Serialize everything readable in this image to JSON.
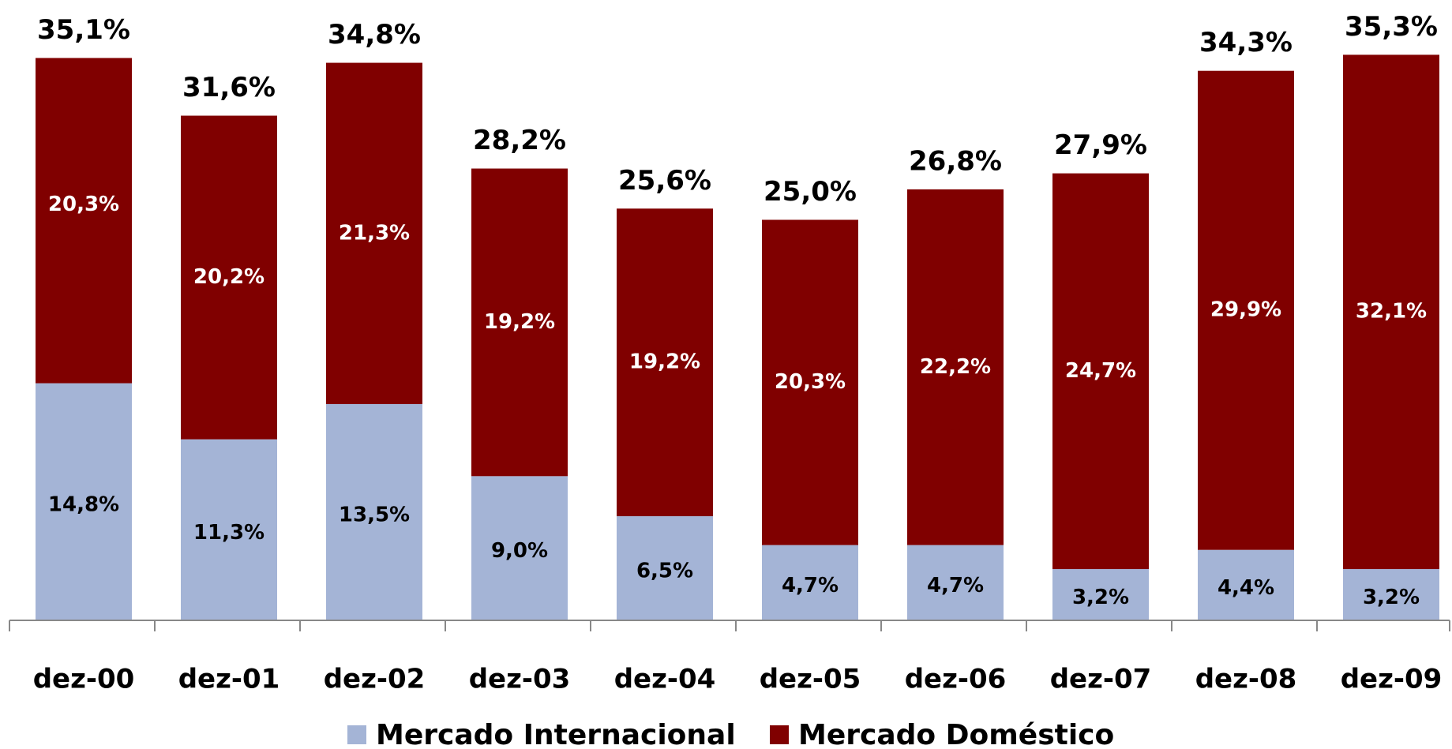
{
  "chart_data": {
    "type": "stacked_bar",
    "categories": [
      "dez-00",
      "dez-01",
      "dez-02",
      "dez-03",
      "dez-04",
      "dez-05",
      "dez-06",
      "dez-07",
      "dez-08",
      "dez-09"
    ],
    "series": [
      {
        "name": "Mercado Internacional",
        "color": "#a4b4d6",
        "values": [
          14.8,
          11.3,
          13.5,
          9.0,
          6.5,
          4.7,
          4.7,
          3.2,
          4.4,
          3.2
        ],
        "value_labels": [
          "14,8%",
          "11,3%",
          "13,5%",
          "9,0%",
          "6,5%",
          "4,7%",
          "4,7%",
          "3,2%",
          "4,4%",
          "3,2%"
        ]
      },
      {
        "name": "Mercado Doméstico",
        "color": "#800000",
        "values": [
          20.3,
          20.2,
          21.3,
          19.2,
          19.2,
          20.3,
          22.2,
          24.7,
          29.9,
          32.1
        ],
        "value_labels": [
          "20,3%",
          "20,2%",
          "21,3%",
          "19,2%",
          "19,2%",
          "20,3%",
          "22,2%",
          "24,7%",
          "29,9%",
          "32,1%"
        ]
      }
    ],
    "totals": [
      35.1,
      31.6,
      34.8,
      28.2,
      25.6,
      25.0,
      26.8,
      27.9,
      34.3,
      35.3
    ],
    "total_labels": [
      "35,1%",
      "31,6%",
      "34,8%",
      "28,2%",
      "25,6%",
      "25,0%",
      "26,8%",
      "27,9%",
      "34,3%",
      "35,3%"
    ],
    "legend": "bottom"
  }
}
